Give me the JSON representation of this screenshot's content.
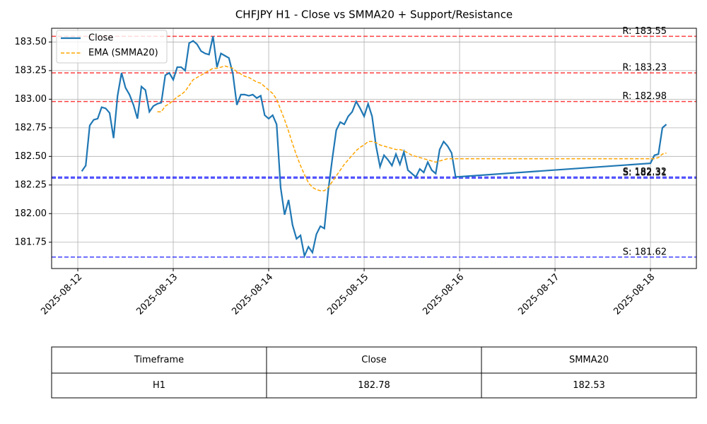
{
  "chart_data": {
    "type": "line",
    "title": "CHFJPY H1 - Close vs SMMA20 + Support/Resistance",
    "x": [
      "2025-08-12 01:00",
      "2025-08-12 02:00",
      "2025-08-12 03:00",
      "2025-08-12 04:00",
      "2025-08-12 05:00",
      "2025-08-12 06:00",
      "2025-08-12 07:00",
      "2025-08-12 08:00",
      "2025-08-12 09:00",
      "2025-08-12 10:00",
      "2025-08-12 11:00",
      "2025-08-12 12:00",
      "2025-08-12 13:00",
      "2025-08-12 14:00",
      "2025-08-12 15:00",
      "2025-08-12 16:00",
      "2025-08-12 17:00",
      "2025-08-12 18:00",
      "2025-08-12 19:00",
      "2025-08-12 20:00",
      "2025-08-12 21:00",
      "2025-08-12 22:00",
      "2025-08-12 23:00",
      "2025-08-13 00:00",
      "2025-08-13 01:00",
      "2025-08-13 02:00",
      "2025-08-13 03:00",
      "2025-08-13 04:00",
      "2025-08-13 05:00",
      "2025-08-13 06:00",
      "2025-08-13 07:00",
      "2025-08-13 08:00",
      "2025-08-13 09:00",
      "2025-08-13 10:00",
      "2025-08-13 11:00",
      "2025-08-13 12:00",
      "2025-08-13 13:00",
      "2025-08-13 14:00",
      "2025-08-13 15:00",
      "2025-08-13 16:00",
      "2025-08-13 17:00",
      "2025-08-13 18:00",
      "2025-08-13 19:00",
      "2025-08-13 20:00",
      "2025-08-13 21:00",
      "2025-08-13 22:00",
      "2025-08-13 23:00",
      "2025-08-14 00:00",
      "2025-08-14 01:00",
      "2025-08-14 02:00",
      "2025-08-14 03:00",
      "2025-08-14 04:00",
      "2025-08-14 05:00",
      "2025-08-14 06:00",
      "2025-08-14 07:00",
      "2025-08-14 08:00",
      "2025-08-14 09:00",
      "2025-08-14 10:00",
      "2025-08-14 11:00",
      "2025-08-14 12:00",
      "2025-08-14 13:00",
      "2025-08-14 14:00",
      "2025-08-14 15:00",
      "2025-08-14 16:00",
      "2025-08-14 17:00",
      "2025-08-14 18:00",
      "2025-08-14 19:00",
      "2025-08-14 20:00",
      "2025-08-14 21:00",
      "2025-08-14 22:00",
      "2025-08-14 23:00",
      "2025-08-15 00:00",
      "2025-08-15 01:00",
      "2025-08-15 02:00",
      "2025-08-15 03:00",
      "2025-08-15 04:00",
      "2025-08-15 05:00",
      "2025-08-15 06:00",
      "2025-08-15 07:00",
      "2025-08-15 08:00",
      "2025-08-15 09:00",
      "2025-08-15 10:00",
      "2025-08-15 11:00",
      "2025-08-15 12:00",
      "2025-08-15 13:00",
      "2025-08-15 14:00",
      "2025-08-15 15:00",
      "2025-08-15 16:00",
      "2025-08-15 17:00",
      "2025-08-15 18:00",
      "2025-08-15 19:00",
      "2025-08-15 20:00",
      "2025-08-15 21:00",
      "2025-08-15 22:00",
      "2025-08-15 23:00",
      "2025-08-18 00:00",
      "2025-08-18 01:00",
      "2025-08-18 02:00",
      "2025-08-18 03:00",
      "2025-08-18 04:00"
    ],
    "series": [
      {
        "name": "Close",
        "color": "#1f77b4",
        "style": "solid",
        "values": [
          182.37,
          182.42,
          182.77,
          182.82,
          182.83,
          182.93,
          182.92,
          182.88,
          182.66,
          183.03,
          183.23,
          183.1,
          183.04,
          182.95,
          182.83,
          183.11,
          183.08,
          182.89,
          182.94,
          182.96,
          182.97,
          183.21,
          183.23,
          183.17,
          183.28,
          183.28,
          183.25,
          183.49,
          183.51,
          183.48,
          183.42,
          183.4,
          183.39,
          183.55,
          183.28,
          183.4,
          183.38,
          183.36,
          183.22,
          182.95,
          183.04,
          183.04,
          183.03,
          183.04,
          183.01,
          183.03,
          182.86,
          182.83,
          182.86,
          182.78,
          182.23,
          181.99,
          182.12,
          181.9,
          181.78,
          181.81,
          181.63,
          181.71,
          181.66,
          181.82,
          181.89,
          181.87,
          182.21,
          182.48,
          182.73,
          182.8,
          182.78,
          182.85,
          182.89,
          182.98,
          182.92,
          182.85,
          182.96,
          182.85,
          182.59,
          182.41,
          182.51,
          182.47,
          182.42,
          182.52,
          182.43,
          182.54,
          182.38,
          182.35,
          182.32,
          182.39,
          182.36,
          182.45,
          182.38,
          182.35,
          182.56,
          182.63,
          182.59,
          182.53,
          182.32,
          182.44,
          182.51,
          182.52,
          182.75,
          182.78
        ]
      },
      {
        "name": "EMA (SMMA20)",
        "color": "#ffa500",
        "style": "dashed",
        "values": [
          null,
          null,
          null,
          null,
          null,
          null,
          null,
          null,
          null,
          null,
          null,
          null,
          null,
          null,
          null,
          null,
          null,
          null,
          null,
          182.89,
          182.89,
          182.94,
          182.96,
          182.99,
          183.02,
          183.04,
          183.07,
          183.12,
          183.17,
          183.19,
          183.21,
          183.23,
          183.25,
          183.27,
          183.27,
          183.28,
          183.29,
          183.28,
          183.27,
          183.24,
          183.22,
          183.2,
          183.19,
          183.17,
          183.15,
          183.14,
          183.11,
          183.08,
          183.05,
          183.0,
          182.91,
          182.82,
          182.72,
          182.61,
          182.51,
          182.42,
          182.34,
          182.27,
          182.23,
          182.21,
          182.2,
          182.2,
          182.23,
          182.28,
          182.33,
          182.38,
          182.43,
          182.47,
          182.51,
          182.55,
          182.58,
          182.6,
          182.63,
          182.63,
          182.62,
          182.6,
          182.59,
          182.58,
          182.57,
          182.56,
          182.56,
          182.55,
          182.53,
          182.51,
          182.5,
          182.49,
          182.48,
          182.47,
          182.46,
          182.45,
          182.46,
          182.47,
          182.48,
          182.48,
          182.48,
          182.48,
          182.48,
          182.49,
          182.52,
          182.53
        ]
      }
    ],
    "resistance": {
      "color": "#ff0000",
      "levels": [
        {
          "value": 183.55,
          "label": "R: 183.55"
        },
        {
          "value": 183.23,
          "label": "R: 183.23"
        },
        {
          "value": 182.98,
          "label": "R: 182.98"
        }
      ]
    },
    "support": {
      "color": "#0000ff",
      "levels": [
        {
          "value": 182.31,
          "label": "S: 182.31"
        },
        {
          "value": 182.32,
          "label": "S: 182.32"
        },
        {
          "value": 181.62,
          "label": "S: 181.62"
        }
      ]
    },
    "xlim": [
      "2025-08-11 17:25",
      "2025-08-18 11:33"
    ],
    "xticks": [
      "2025-08-12",
      "2025-08-13",
      "2025-08-14",
      "2025-08-15",
      "2025-08-16",
      "2025-08-17",
      "2025-08-18"
    ],
    "ylim": [
      181.52,
      183.62
    ],
    "yticks": [
      181.75,
      {
        "value": 182,
        "label": "182.00"
      },
      182.25,
      {
        "value": 182.5,
        "label": "182.50"
      },
      182.75,
      {
        "value": 183,
        "label": "183.00"
      },
      183.25,
      {
        "value": 183.5,
        "label": "183.50"
      }
    ],
    "grid": true,
    "legend": "upper left"
  },
  "table": {
    "header": [
      "Timeframe",
      "Close",
      "SMMA20"
    ],
    "rows": [
      [
        "H1",
        "182.78",
        "182.53"
      ]
    ]
  }
}
